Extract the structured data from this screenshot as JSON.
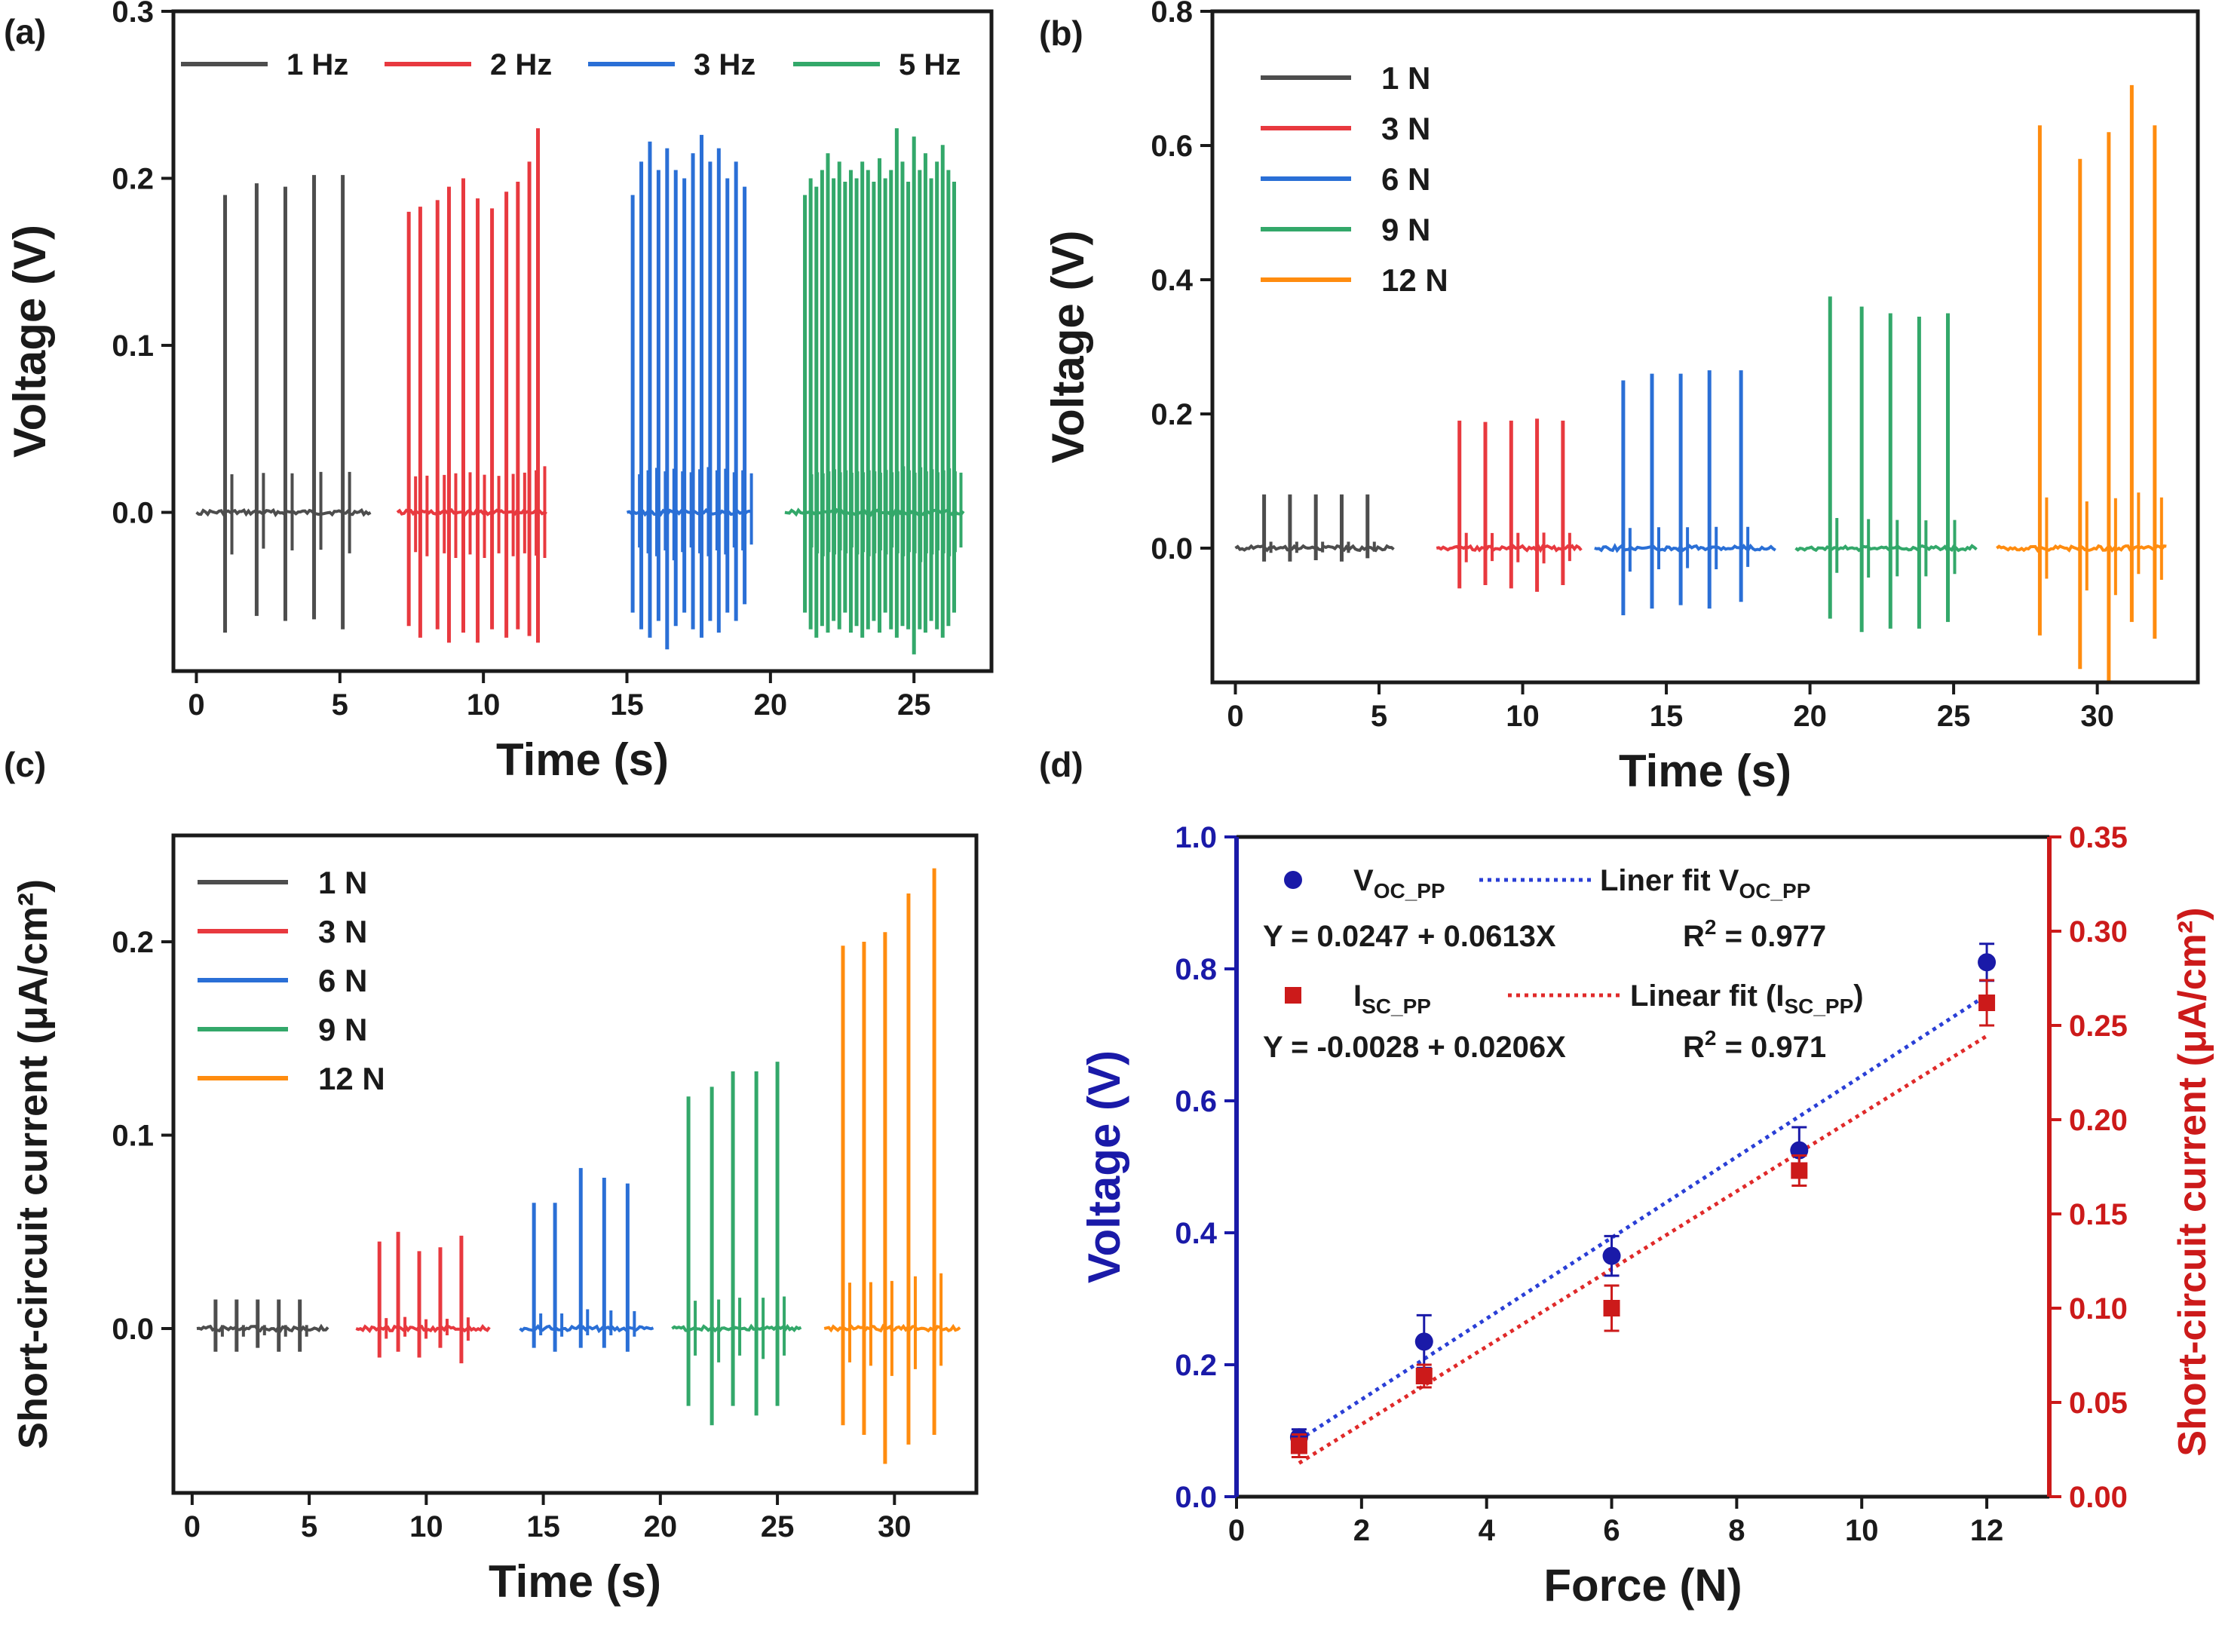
{
  "panel_labels": [
    "(a)",
    "(b)",
    "(c)",
    "(d)"
  ],
  "colors": {
    "gray": "#4d4d4d",
    "red": "#e8393f",
    "blue": "#2a6fd6",
    "green": "#33a86a",
    "orange": "#ff8c0f",
    "navy": "#1a1aa8",
    "darkred": "#cc1a1a",
    "fit_blue": "#2a3fd6",
    "fit_red": "#e02a2a",
    "text": "#1a1a1a"
  },
  "chart_data": [
    {
      "id": "a",
      "type": "line",
      "title": "",
      "xlabel": "Time (s)",
      "ylabel": "Voltage (V)",
      "xlim": [
        -0.8,
        27.7
      ],
      "ylim": [
        -0.095,
        0.3
      ],
      "xticks": [
        "0",
        "5",
        "10",
        "15",
        "20",
        "25"
      ],
      "xtick_values": [
        0,
        5,
        10,
        15,
        20,
        25
      ],
      "yticks": [
        "0.0",
        "0.1",
        "0.2",
        "0.3"
      ],
      "ytick_values": [
        0,
        0.1,
        0.2,
        0.3
      ],
      "legend": {
        "position": "top",
        "orientation": "horizontal"
      },
      "series": [
        {
          "name": "1 Hz",
          "color": "gray",
          "t_start": 0.0,
          "t_end": 6.1,
          "peaks": [
            [
              1.0,
              0.19,
              -0.072
            ],
            [
              2.1,
              0.197,
              -0.062
            ],
            [
              3.1,
              0.195,
              -0.065
            ],
            [
              4.1,
              0.202,
              -0.064
            ],
            [
              5.1,
              0.202,
              -0.07
            ]
          ]
        },
        {
          "name": "2 Hz",
          "color": "red",
          "t_start": 7.0,
          "t_end": 12.2,
          "peaks": [
            [
              7.4,
              0.18,
              -0.068
            ],
            [
              7.8,
              0.183,
              -0.075
            ],
            [
              8.4,
              0.187,
              -0.07
            ],
            [
              8.8,
              0.195,
              -0.078
            ],
            [
              9.3,
              0.2,
              -0.072
            ],
            [
              9.8,
              0.188,
              -0.078
            ],
            [
              10.3,
              0.182,
              -0.07
            ],
            [
              10.8,
              0.192,
              -0.075
            ],
            [
              11.2,
              0.198,
              -0.07
            ],
            [
              11.6,
              0.21,
              -0.074
            ],
            [
              11.9,
              0.23,
              -0.078
            ]
          ]
        },
        {
          "name": "3 Hz",
          "color": "blue",
          "t_start": 15.0,
          "t_end": 19.3,
          "peaks": [
            [
              15.2,
              0.19,
              -0.06
            ],
            [
              15.5,
              0.21,
              -0.07
            ],
            [
              15.8,
              0.222,
              -0.075
            ],
            [
              16.1,
              0.205,
              -0.065
            ],
            [
              16.4,
              0.218,
              -0.082
            ],
            [
              16.7,
              0.205,
              -0.068
            ],
            [
              17.0,
              0.2,
              -0.06
            ],
            [
              17.3,
              0.215,
              -0.07
            ],
            [
              17.6,
              0.226,
              -0.075
            ],
            [
              17.9,
              0.21,
              -0.065
            ],
            [
              18.2,
              0.218,
              -0.072
            ],
            [
              18.5,
              0.2,
              -0.06
            ],
            [
              18.8,
              0.21,
              -0.065
            ],
            [
              19.1,
              0.195,
              -0.055
            ]
          ]
        },
        {
          "name": "5 Hz",
          "color": "green",
          "t_start": 20.5,
          "t_end": 26.7,
          "peaks": [
            [
              21.2,
              0.19,
              -0.06
            ],
            [
              21.4,
              0.2,
              -0.07
            ],
            [
              21.6,
              0.195,
              -0.075
            ],
            [
              21.8,
              0.205,
              -0.068
            ],
            [
              22.0,
              0.215,
              -0.072
            ],
            [
              22.2,
              0.2,
              -0.065
            ],
            [
              22.4,
              0.21,
              -0.07
            ],
            [
              22.6,
              0.198,
              -0.06
            ],
            [
              22.8,
              0.205,
              -0.072
            ],
            [
              23.0,
              0.2,
              -0.068
            ],
            [
              23.2,
              0.21,
              -0.075
            ],
            [
              23.4,
              0.205,
              -0.07
            ],
            [
              23.6,
              0.198,
              -0.065
            ],
            [
              23.8,
              0.212,
              -0.072
            ],
            [
              24.0,
              0.2,
              -0.06
            ],
            [
              24.2,
              0.205,
              -0.07
            ],
            [
              24.4,
              0.23,
              -0.075
            ],
            [
              24.6,
              0.21,
              -0.068
            ],
            [
              24.8,
              0.198,
              -0.07
            ],
            [
              25.0,
              0.225,
              -0.085
            ],
            [
              25.2,
              0.205,
              -0.07
            ],
            [
              25.4,
              0.215,
              -0.072
            ],
            [
              25.6,
              0.2,
              -0.065
            ],
            [
              25.8,
              0.21,
              -0.07
            ],
            [
              26.0,
              0.22,
              -0.075
            ],
            [
              26.2,
              0.205,
              -0.068
            ],
            [
              26.4,
              0.198,
              -0.06
            ]
          ]
        }
      ]
    },
    {
      "id": "b",
      "type": "line",
      "title": "",
      "xlabel": "Time (s)",
      "ylabel": "Voltage (V)",
      "xlim": [
        -0.8,
        33.5
      ],
      "ylim": [
        -0.2,
        0.8
      ],
      "xticks": [
        "0",
        "5",
        "10",
        "15",
        "20",
        "25",
        "30"
      ],
      "xtick_values": [
        0,
        5,
        10,
        15,
        20,
        25,
        30
      ],
      "yticks": [
        "0.0",
        "0.2",
        "0.4",
        "0.6",
        "0.8"
      ],
      "ytick_values": [
        0,
        0.2,
        0.4,
        0.6,
        0.8
      ],
      "legend": {
        "position": "top-left",
        "orientation": "vertical"
      },
      "series": [
        {
          "name": "1 N",
          "color": "gray",
          "t_start": 0.0,
          "t_end": 5.5,
          "peaks": [
            [
              1.0,
              0.08,
              -0.02
            ],
            [
              1.9,
              0.08,
              -0.02
            ],
            [
              2.8,
              0.08,
              -0.018
            ],
            [
              3.7,
              0.08,
              -0.02
            ],
            [
              4.6,
              0.08,
              -0.015
            ]
          ]
        },
        {
          "name": "3 N",
          "color": "red",
          "t_start": 7.0,
          "t_end": 12.0,
          "peaks": [
            [
              7.8,
              0.19,
              -0.06
            ],
            [
              8.7,
              0.188,
              -0.055
            ],
            [
              9.6,
              0.19,
              -0.06
            ],
            [
              10.5,
              0.193,
              -0.065
            ],
            [
              11.4,
              0.19,
              -0.055
            ]
          ]
        },
        {
          "name": "6 N",
          "color": "blue",
          "t_start": 12.5,
          "t_end": 18.8,
          "peaks": [
            [
              13.5,
              0.25,
              -0.1
            ],
            [
              14.5,
              0.26,
              -0.09
            ],
            [
              15.5,
              0.26,
              -0.085
            ],
            [
              16.5,
              0.265,
              -0.09
            ],
            [
              17.6,
              0.265,
              -0.08
            ]
          ]
        },
        {
          "name": "9 N",
          "color": "green",
          "t_start": 19.5,
          "t_end": 25.8,
          "peaks": [
            [
              20.7,
              0.375,
              -0.105
            ],
            [
              21.8,
              0.36,
              -0.125
            ],
            [
              22.8,
              0.35,
              -0.12
            ],
            [
              23.8,
              0.345,
              -0.12
            ],
            [
              24.8,
              0.35,
              -0.11
            ]
          ]
        },
        {
          "name": "12 N",
          "color": "orange",
          "t_start": 26.5,
          "t_end": 32.4,
          "peaks": [
            [
              28.0,
              0.63,
              -0.13
            ],
            [
              29.4,
              0.58,
              -0.18
            ],
            [
              30.4,
              0.62,
              -0.2
            ],
            [
              31.2,
              0.69,
              -0.11
            ],
            [
              32.0,
              0.63,
              -0.135
            ]
          ]
        }
      ]
    },
    {
      "id": "c",
      "type": "line",
      "title": "",
      "xlabel": "Time (s)",
      "ylabel": "Short-circuit current (μA/cm²)",
      "xlim": [
        -0.8,
        33.5
      ],
      "ylim": [
        -0.085,
        0.255
      ],
      "xticks": [
        "0",
        "5",
        "10",
        "15",
        "20",
        "25",
        "30"
      ],
      "xtick_values": [
        0,
        5,
        10,
        15,
        20,
        25,
        30
      ],
      "yticks": [
        "0.0",
        "0.1",
        "0.2"
      ],
      "ytick_values": [
        0,
        0.1,
        0.2
      ],
      "legend": {
        "position": "top-left",
        "orientation": "vertical"
      },
      "series": [
        {
          "name": "1 N",
          "color": "gray",
          "t_start": 0.2,
          "t_end": 5.8,
          "peaks": [
            [
              1.0,
              0.015,
              -0.012
            ],
            [
              1.9,
              0.015,
              -0.012
            ],
            [
              2.8,
              0.015,
              -0.01
            ],
            [
              3.7,
              0.015,
              -0.012
            ],
            [
              4.6,
              0.015,
              -0.012
            ]
          ]
        },
        {
          "name": "3 N",
          "color": "red",
          "t_start": 7.0,
          "t_end": 12.7,
          "peaks": [
            [
              8.0,
              0.045,
              -0.015
            ],
            [
              8.8,
              0.05,
              -0.012
            ],
            [
              9.7,
              0.04,
              -0.015
            ],
            [
              10.6,
              0.042,
              -0.01
            ],
            [
              11.5,
              0.048,
              -0.018
            ]
          ]
        },
        {
          "name": "6 N",
          "color": "blue",
          "t_start": 14.0,
          "t_end": 19.7,
          "peaks": [
            [
              14.6,
              0.065,
              -0.01
            ],
            [
              15.5,
              0.065,
              -0.012
            ],
            [
              16.6,
              0.083,
              -0.01
            ],
            [
              17.6,
              0.078,
              -0.01
            ],
            [
              18.6,
              0.075,
              -0.012
            ]
          ]
        },
        {
          "name": "9 N",
          "color": "green",
          "t_start": 20.5,
          "t_end": 26.0,
          "peaks": [
            [
              21.2,
              0.12,
              -0.04
            ],
            [
              22.2,
              0.125,
              -0.05
            ],
            [
              23.1,
              0.133,
              -0.04
            ],
            [
              24.1,
              0.133,
              -0.045
            ],
            [
              25.0,
              0.138,
              -0.04
            ]
          ]
        },
        {
          "name": "12 N",
          "color": "orange",
          "t_start": 27.0,
          "t_end": 32.8,
          "peaks": [
            [
              27.8,
              0.198,
              -0.05
            ],
            [
              28.7,
              0.2,
              -0.055
            ],
            [
              29.6,
              0.205,
              -0.07
            ],
            [
              30.6,
              0.225,
              -0.06
            ],
            [
              31.7,
              0.238,
              -0.055
            ]
          ]
        }
      ]
    },
    {
      "id": "d",
      "type": "scatter",
      "title": "",
      "xlabel": "Force (N)",
      "ylabel": "Voltage (V)",
      "ylabel_right": "Short-circuit current (μA/cm²)",
      "xlim": [
        0,
        13
      ],
      "ylim": [
        0,
        1.0
      ],
      "ylim_right": [
        0,
        0.35
      ],
      "xticks": [
        "0",
        "2",
        "4",
        "6",
        "8",
        "10",
        "12"
      ],
      "xtick_values": [
        0,
        2,
        4,
        6,
        8,
        10,
        12
      ],
      "yticks": [
        "0.0",
        "0.2",
        "0.4",
        "0.6",
        "0.8",
        "1.0"
      ],
      "ytick_values": [
        0,
        0.2,
        0.4,
        0.6,
        0.8,
        1.0
      ],
      "yticks_right": [
        "0.00",
        "0.05",
        "0.10",
        "0.15",
        "0.20",
        "0.25",
        "0.30",
        "0.35"
      ],
      "ytick_values_right": [
        0,
        0.05,
        0.1,
        0.15,
        0.2,
        0.25,
        0.3,
        0.35
      ],
      "x": [
        1,
        3,
        6,
        9,
        12
      ],
      "series": [
        {
          "name": "V_OC_PP",
          "axis": "left",
          "marker": "circle",
          "color": "navy",
          "values": [
            0.09,
            0.235,
            0.365,
            0.525,
            0.81
          ],
          "errors": [
            0.012,
            0.04,
            0.03,
            0.035,
            0.028
          ]
        },
        {
          "name": "I_SC_PP",
          "axis": "right",
          "marker": "square",
          "color": "darkred",
          "values": [
            0.027,
            0.064,
            0.1,
            0.173,
            0.262
          ],
          "errors": [
            0.006,
            0.006,
            0.012,
            0.008,
            0.012
          ]
        }
      ],
      "fits": [
        {
          "name": "Liner fit V_OC_PP",
          "axis": "left",
          "intercept": 0.0247,
          "slope": 0.0613,
          "color": "fit_blue"
        },
        {
          "name": "Linear fit (I_SC_PP)",
          "axis": "right",
          "intercept": -0.0028,
          "slope": 0.0206,
          "color": "fit_red"
        }
      ],
      "annotations": [
        {
          "equation": "Y = 0.0247 + 0.0613X",
          "r2_prefix": "R",
          "r2_suffix": " = 0.977"
        },
        {
          "equation": "Y = -0.0028 + 0.0206X",
          "r2_prefix": "R",
          "r2_suffix": " = 0.971"
        }
      ],
      "legend": [
        {
          "label_main": "V",
          "label_sub": "OC_PP",
          "fit_main": "Liner fit V",
          "fit_sub": "OC_PP",
          "fit_end": ""
        },
        {
          "label_main": "I",
          "label_sub": "SC_PP",
          "fit_main": "Linear fit (I",
          "fit_sub": "SC_PP",
          "fit_end": ")"
        }
      ]
    }
  ]
}
